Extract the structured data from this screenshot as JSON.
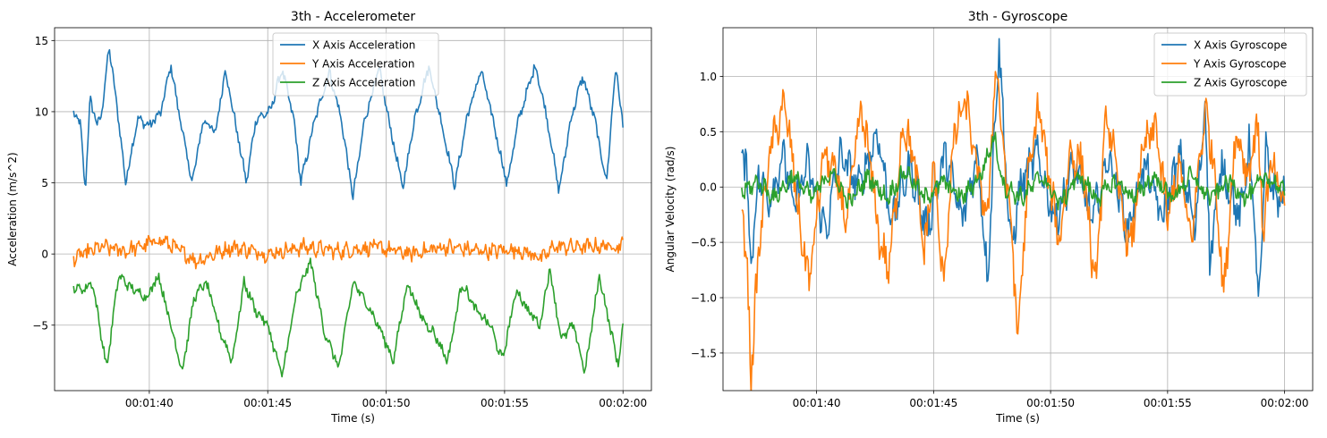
{
  "chart_data": [
    {
      "type": "line",
      "title": "3th - Accelerometer",
      "xlabel": "Time (s)",
      "ylabel": "Acceleration (m/s^2)",
      "x_unit": "seconds",
      "x_range": [
        96.8,
        120.0
      ],
      "xlim": [
        96.0,
        121.2
      ],
      "ylim": [
        -9.6,
        15.9
      ],
      "xticks": [
        100,
        105,
        110,
        115,
        120
      ],
      "xtick_labels": [
        "00:01:40",
        "00:01:45",
        "00:01:50",
        "00:01:55",
        "00:02:00"
      ],
      "yticks": [
        -5,
        0,
        5,
        10,
        15
      ],
      "ytick_labels": [
        "−5",
        "0",
        "5",
        "10",
        "15"
      ],
      "grid": true,
      "legend_position": "top-center",
      "series": [
        {
          "name": "X Axis Acceleration",
          "color": "#1f77b4",
          "noise": 0.6,
          "keypoints": [
            [
              96.8,
              10.0
            ],
            [
              97.1,
              9.0
            ],
            [
              97.3,
              4.4
            ],
            [
              97.5,
              11.0
            ],
            [
              97.8,
              9.0
            ],
            [
              98.0,
              10.0
            ],
            [
              98.3,
              14.6
            ],
            [
              98.7,
              9.5
            ],
            [
              99.0,
              5.0
            ],
            [
              99.5,
              9.5
            ],
            [
              100.0,
              9.0
            ],
            [
              100.5,
              10.0
            ],
            [
              100.9,
              13.3
            ],
            [
              101.3,
              9.5
            ],
            [
              101.8,
              5.0
            ],
            [
              102.3,
              9.5
            ],
            [
              102.8,
              8.5
            ],
            [
              103.2,
              13.0
            ],
            [
              103.6,
              9.5
            ],
            [
              104.1,
              5.0
            ],
            [
              104.5,
              9.5
            ],
            [
              105.1,
              10.0
            ],
            [
              105.6,
              13.0
            ],
            [
              106.1,
              9.5
            ],
            [
              106.4,
              5.0
            ],
            [
              107.0,
              9.5
            ],
            [
              107.6,
              12.8
            ],
            [
              108.1,
              9.5
            ],
            [
              108.6,
              4.0
            ],
            [
              109.1,
              9.5
            ],
            [
              109.7,
              13.0
            ],
            [
              110.1,
              9.5
            ],
            [
              110.7,
              4.6
            ],
            [
              111.2,
              9.5
            ],
            [
              111.8,
              13.2
            ],
            [
              112.3,
              9.5
            ],
            [
              112.9,
              4.8
            ],
            [
              113.4,
              9.5
            ],
            [
              114.0,
              12.9
            ],
            [
              114.5,
              9.5
            ],
            [
              115.1,
              4.9
            ],
            [
              115.6,
              9.5
            ],
            [
              116.3,
              13.3
            ],
            [
              116.8,
              9.5
            ],
            [
              117.3,
              4.4
            ],
            [
              117.8,
              9.5
            ],
            [
              118.3,
              12.5
            ],
            [
              118.8,
              9.5
            ],
            [
              119.3,
              5.0
            ],
            [
              119.7,
              13.3
            ],
            [
              120.0,
              8.8
            ]
          ]
        },
        {
          "name": "Y Axis Acceleration",
          "color": "#ff7f0e",
          "noise": 0.9,
          "keypoints": [
            [
              96.8,
              -0.3
            ],
            [
              98.0,
              0.5
            ],
            [
              99.0,
              0.2
            ],
            [
              100.5,
              1.0
            ],
            [
              102.0,
              -0.5
            ],
            [
              103.5,
              0.5
            ],
            [
              105.0,
              0.0
            ],
            [
              106.5,
              0.5
            ],
            [
              108.0,
              0.2
            ],
            [
              109.5,
              0.5
            ],
            [
              111.0,
              0.0
            ],
            [
              112.5,
              0.5
            ],
            [
              114.0,
              0.2
            ],
            [
              115.5,
              0.3
            ],
            [
              116.7,
              -0.3
            ],
            [
              117.0,
              0.5
            ],
            [
              118.5,
              0.5
            ],
            [
              120.0,
              0.6
            ]
          ]
        },
        {
          "name": "Z Axis Acceleration",
          "color": "#2ca02c",
          "noise": 0.6,
          "keypoints": [
            [
              96.8,
              -2.3
            ],
            [
              97.2,
              -2.5
            ],
            [
              97.6,
              -2.0
            ],
            [
              98.2,
              -8.0
            ],
            [
              98.7,
              -1.5
            ],
            [
              99.3,
              -2.5
            ],
            [
              99.9,
              -3.0
            ],
            [
              100.4,
              -1.5
            ],
            [
              100.9,
              -5.0
            ],
            [
              101.4,
              -8.2
            ],
            [
              101.9,
              -3.0
            ],
            [
              102.4,
              -2.0
            ],
            [
              103.0,
              -5.5
            ],
            [
              103.5,
              -7.5
            ],
            [
              104.0,
              -2.0
            ],
            [
              104.5,
              -4.0
            ],
            [
              105.0,
              -5.0
            ],
            [
              105.6,
              -8.6
            ],
            [
              106.2,
              -3.0
            ],
            [
              106.8,
              -0.5
            ],
            [
              107.4,
              -5.5
            ],
            [
              108.0,
              -8.0
            ],
            [
              108.6,
              -2.0
            ],
            [
              109.2,
              -3.5
            ],
            [
              109.8,
              -5.5
            ],
            [
              110.3,
              -7.5
            ],
            [
              110.9,
              -2.0
            ],
            [
              111.5,
              -4.5
            ],
            [
              112.0,
              -5.5
            ],
            [
              112.6,
              -7.5
            ],
            [
              113.2,
              -2.0
            ],
            [
              113.8,
              -4.0
            ],
            [
              114.4,
              -5.0
            ],
            [
              114.9,
              -7.5
            ],
            [
              115.5,
              -2.5
            ],
            [
              116.0,
              -4.0
            ],
            [
              116.5,
              -5.0
            ],
            [
              116.9,
              -1.0
            ],
            [
              117.4,
              -6.0
            ],
            [
              117.9,
              -5.0
            ],
            [
              118.4,
              -8.3
            ],
            [
              119.0,
              -1.5
            ],
            [
              119.5,
              -5.5
            ],
            [
              119.8,
              -7.8
            ],
            [
              120.0,
              -5.0
            ]
          ]
        }
      ]
    },
    {
      "type": "line",
      "title": "3th - Gyroscope",
      "xlabel": "Time (s)",
      "ylabel": "Angular Velocity (rad/s)",
      "x_unit": "seconds",
      "x_range": [
        96.8,
        120.0
      ],
      "xlim": [
        96.0,
        121.2
      ],
      "ylim": [
        -1.84,
        1.44
      ],
      "xticks": [
        100,
        105,
        110,
        115,
        120
      ],
      "xtick_labels": [
        "00:01:40",
        "00:01:45",
        "00:01:50",
        "00:01:55",
        "00:02:00"
      ],
      "yticks": [
        -1.5,
        -1.0,
        -0.5,
        0.0,
        0.5,
        1.0
      ],
      "ytick_labels": [
        "−1.5",
        "−1.0",
        "−0.5",
        "0.0",
        "0.5",
        "1.0"
      ],
      "grid": true,
      "legend_position": "top-right",
      "series": [
        {
          "name": "X Axis Gyroscope",
          "color": "#1f77b4",
          "noise": 0.28,
          "keypoints": [
            [
              96.8,
              0.3
            ],
            [
              97.0,
              0.2
            ],
            [
              97.2,
              -0.7
            ],
            [
              97.5,
              0.1
            ],
            [
              98.0,
              -0.1
            ],
            [
              98.6,
              0.3
            ],
            [
              99.0,
              -0.2
            ],
            [
              99.6,
              0.2
            ],
            [
              100.4,
              -0.4
            ],
            [
              101.0,
              0.3
            ],
            [
              101.8,
              0.0
            ],
            [
              102.6,
              0.5
            ],
            [
              103.2,
              -0.3
            ],
            [
              104.0,
              0.2
            ],
            [
              104.7,
              -0.4
            ],
            [
              105.5,
              0.3
            ],
            [
              106.2,
              -0.3
            ],
            [
              106.9,
              0.3
            ],
            [
              107.3,
              -0.85
            ],
            [
              107.6,
              0.5
            ],
            [
              107.8,
              1.3
            ],
            [
              108.0,
              0.5
            ],
            [
              108.3,
              -0.6
            ],
            [
              108.7,
              0.0
            ],
            [
              109.4,
              0.3
            ],
            [
              110.2,
              -0.3
            ],
            [
              111.0,
              0.2
            ],
            [
              111.8,
              -0.3
            ],
            [
              112.5,
              0.3
            ],
            [
              113.3,
              -0.4
            ],
            [
              114.0,
              0.2
            ],
            [
              114.8,
              -0.3
            ],
            [
              115.5,
              0.3
            ],
            [
              116.2,
              -0.4
            ],
            [
              116.6,
              0.8
            ],
            [
              116.8,
              -0.65
            ],
            [
              117.3,
              0.2
            ],
            [
              118.1,
              -0.3
            ],
            [
              118.5,
              0.4
            ],
            [
              118.9,
              -1.08
            ],
            [
              119.2,
              0.3
            ],
            [
              119.6,
              -0.1
            ],
            [
              120.0,
              -0.1
            ]
          ]
        },
        {
          "name": "Y Axis Gyroscope",
          "color": "#ff7f0e",
          "noise": 0.3,
          "keypoints": [
            [
              96.8,
              -0.15
            ],
            [
              97.0,
              -0.6
            ],
            [
              97.2,
              -1.7
            ],
            [
              97.4,
              -1.0
            ],
            [
              97.6,
              -0.4
            ],
            [
              98.0,
              0.3
            ],
            [
              98.6,
              0.76
            ],
            [
              99.0,
              0.2
            ],
            [
              99.3,
              -0.4
            ],
            [
              99.7,
              -0.85
            ],
            [
              100.3,
              0.3
            ],
            [
              100.8,
              0.1
            ],
            [
              101.3,
              -0.3
            ],
            [
              101.9,
              0.7
            ],
            [
              102.3,
              0.2
            ],
            [
              102.7,
              -0.5
            ],
            [
              103.1,
              -0.75
            ],
            [
              103.7,
              0.6
            ],
            [
              104.2,
              0.2
            ],
            [
              104.6,
              -0.6
            ],
            [
              105.0,
              0.2
            ],
            [
              105.4,
              -0.9
            ],
            [
              105.9,
              0.5
            ],
            [
              106.4,
              0.77
            ],
            [
              106.8,
              0.2
            ],
            [
              107.3,
              -0.3
            ],
            [
              107.7,
              1.2
            ],
            [
              107.9,
              0.5
            ],
            [
              108.3,
              -0.3
            ],
            [
              108.6,
              -1.38
            ],
            [
              109.0,
              0.0
            ],
            [
              109.5,
              0.75
            ],
            [
              109.9,
              0.1
            ],
            [
              110.4,
              -0.5
            ],
            [
              110.8,
              0.3
            ],
            [
              111.4,
              0.2
            ],
            [
              111.9,
              -0.95
            ],
            [
              112.4,
              0.7
            ],
            [
              112.9,
              0.0
            ],
            [
              113.4,
              -0.6
            ],
            [
              113.9,
              0.3
            ],
            [
              114.5,
              0.55
            ],
            [
              115.0,
              -0.3
            ],
            [
              115.5,
              0.2
            ],
            [
              116.0,
              -0.5
            ],
            [
              116.6,
              0.7
            ],
            [
              117.0,
              0.2
            ],
            [
              117.4,
              -1.0
            ],
            [
              117.9,
              0.5
            ],
            [
              118.5,
              0.1
            ],
            [
              118.8,
              0.65
            ],
            [
              119.1,
              -0.4
            ],
            [
              119.4,
              0.2
            ],
            [
              119.7,
              0.0
            ],
            [
              120.0,
              -0.15
            ]
          ]
        },
        {
          "name": "Z Axis Gyroscope",
          "color": "#2ca02c",
          "noise": 0.14,
          "keypoints": [
            [
              96.8,
              -0.05
            ],
            [
              97.5,
              0.05
            ],
            [
              98.2,
              -0.1
            ],
            [
              99.0,
              0.1
            ],
            [
              99.8,
              -0.1
            ],
            [
              100.6,
              0.15
            ],
            [
              101.4,
              -0.15
            ],
            [
              102.2,
              0.1
            ],
            [
              103.0,
              -0.1
            ],
            [
              103.8,
              0.15
            ],
            [
              104.6,
              -0.1
            ],
            [
              105.4,
              0.05
            ],
            [
              106.2,
              -0.1
            ],
            [
              107.0,
              0.1
            ],
            [
              107.6,
              0.45
            ],
            [
              108.0,
              0.0
            ],
            [
              108.8,
              -0.1
            ],
            [
              109.6,
              0.1
            ],
            [
              110.4,
              -0.15
            ],
            [
              111.2,
              0.1
            ],
            [
              112.0,
              -0.1
            ],
            [
              112.8,
              0.05
            ],
            [
              113.6,
              -0.1
            ],
            [
              114.4,
              0.1
            ],
            [
              115.2,
              -0.1
            ],
            [
              116.0,
              0.1
            ],
            [
              116.8,
              -0.1
            ],
            [
              117.6,
              0.05
            ],
            [
              118.4,
              -0.1
            ],
            [
              119.2,
              0.1
            ],
            [
              120.0,
              -0.05
            ]
          ]
        }
      ]
    }
  ]
}
